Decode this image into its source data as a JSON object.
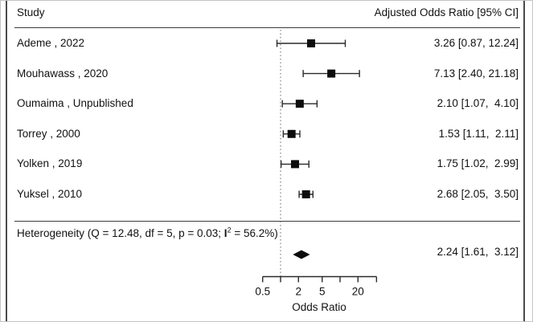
{
  "frame": {
    "background": "#ffffff",
    "outer_border": "#c4c4c4",
    "side_border": "#4a4a4a"
  },
  "header": {
    "left": "Study",
    "right": "Adjusted Odds Ratio [95% CI]"
  },
  "heterogeneity": {
    "prefix": "Heterogeneity (Q = 12.48, df = 5, p = 0.03; ",
    "stat": "I",
    "sup": "2",
    "suffix": " = 56.2%)"
  },
  "chart_data": {
    "type": "forest",
    "x_scale": "log",
    "xlabel": "Odds Ratio",
    "axis": {
      "min": 0.5,
      "max": 41,
      "reference_line": 1,
      "ticks": [
        {
          "v": 0.5,
          "label": "0.5"
        },
        {
          "v": 1,
          "label": ""
        },
        {
          "v": 2,
          "label": "2"
        },
        {
          "v": 5,
          "label": "5"
        },
        {
          "v": 10,
          "label": ""
        },
        {
          "v": 20,
          "label": "20"
        }
      ]
    },
    "studies": [
      {
        "label": "Ademe , 2022",
        "or": 3.26,
        "ci_low": 0.87,
        "ci_high": 12.24,
        "display": "3.26 [0.87, 12.24]"
      },
      {
        "label": "Mouhawass , 2020",
        "or": 7.13,
        "ci_low": 2.4,
        "ci_high": 21.18,
        "display": "7.13 [2.40, 21.18]"
      },
      {
        "label": "Oumaima , Unpublished",
        "or": 2.1,
        "ci_low": 1.07,
        "ci_high": 4.1,
        "display": "2.10 [1.07,  4.10]"
      },
      {
        "label": "Torrey , 2000",
        "or": 1.53,
        "ci_low": 1.11,
        "ci_high": 2.11,
        "display": "1.53 [1.11,  2.11]"
      },
      {
        "label": "Yolken , 2019",
        "or": 1.75,
        "ci_low": 1.02,
        "ci_high": 2.99,
        "display": "1.75 [1.02,  2.99]"
      },
      {
        "label": "Yuksel , 2010",
        "or": 2.68,
        "ci_low": 2.05,
        "ci_high": 3.5,
        "display": "2.68 [2.05,  3.50]"
      }
    ],
    "summary": {
      "or": 2.24,
      "ci_low": 1.61,
      "ci_high": 3.12,
      "display": "2.24 [1.61,  3.12]"
    },
    "colors": {
      "marker": "#0d0d0d",
      "line": "#2a2a2a",
      "reference": "#666666",
      "text": "#111111"
    }
  }
}
